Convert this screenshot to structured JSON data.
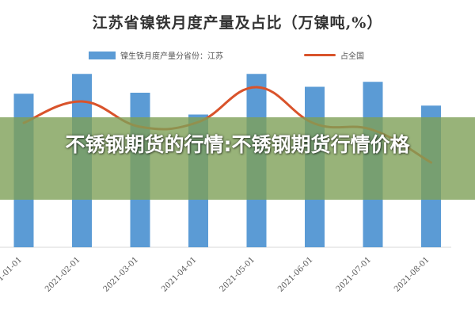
{
  "chart_data": {
    "type": "bar",
    "title": "江苏省镍铁月度产量及占比（万镍吨,%）",
    "categories": [
      "2021-01-01",
      "2021-02-01",
      "2021-03-01",
      "2021-04-01",
      "2021-05-01",
      "2021-06-01",
      "2021-07-01",
      "2021-08-01"
    ],
    "series": [
      {
        "name": "镍生铁月度产量分省份：江苏",
        "kind": "bar",
        "color": "#5b9bd5",
        "values": [
          1.55,
          1.75,
          1.56,
          1.34,
          1.75,
          1.62,
          1.67,
          1.43
        ]
      },
      {
        "name": "占全国",
        "kind": "line",
        "color": "#d9532b",
        "values": [
          0.245,
          0.272,
          0.24,
          0.246,
          0.29,
          0.244,
          0.236,
          0.195
        ]
      }
    ],
    "ylim": [
      0,
      2.0
    ],
    "grid": false,
    "legend_position": "top"
  },
  "banner": {
    "text": "不锈钢期货的行情:不锈钢期货行情价格",
    "color": "#7ea058"
  }
}
